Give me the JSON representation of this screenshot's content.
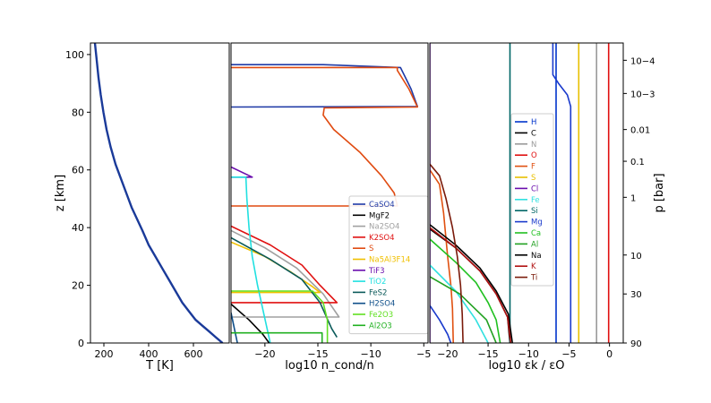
{
  "chart_data": [
    {
      "type": "line",
      "panel": "temperature",
      "xlabel": "T [K]",
      "ylabel": "z [km]",
      "xlim": [
        140,
        760
      ],
      "ylim": [
        0,
        104
      ],
      "xticks": [
        {
          "v": 200,
          "label": "200"
        },
        {
          "v": 400,
          "label": "400"
        },
        {
          "v": 600,
          "label": "600"
        }
      ],
      "yticks": [
        {
          "v": 0,
          "label": "0"
        },
        {
          "v": 20,
          "label": "20"
        },
        {
          "v": 40,
          "label": "40"
        },
        {
          "v": 60,
          "label": "60"
        },
        {
          "v": 80,
          "label": "80"
        },
        {
          "v": 100,
          "label": "100"
        }
      ],
      "series": [
        {
          "color": "#1a3a99",
          "points": [
            [
              160,
              104
            ],
            [
              168,
              98
            ],
            [
              176,
              92
            ],
            [
              186,
              86
            ],
            [
              198,
              80
            ],
            [
              212,
              74
            ],
            [
              230,
              68
            ],
            [
              252,
              62
            ],
            [
              276,
              57
            ],
            [
              300,
              52
            ],
            [
              324,
              47
            ],
            [
              348,
              43
            ],
            [
              372,
              39
            ],
            [
              400,
              34
            ],
            [
              430,
              30
            ],
            [
              460,
              26
            ],
            [
              490,
              22
            ],
            [
              520,
              18
            ],
            [
              550,
              14
            ],
            [
              580,
              11
            ],
            [
              610,
              8
            ],
            [
              640,
              6
            ],
            [
              670,
              4
            ],
            [
              700,
              2
            ],
            [
              730,
              0
            ]
          ]
        }
      ]
    },
    {
      "type": "line",
      "panel": "condensates",
      "xlabel": "log10 n_cond/n",
      "xlim": [
        -23.2,
        -4.6
      ],
      "ylim": [
        0,
        104
      ],
      "xticks": [
        {
          "v": -20,
          "label": "−20"
        },
        {
          "v": -15,
          "label": "−15"
        },
        {
          "v": -10,
          "label": "−10"
        },
        {
          "v": -5,
          "label": "−5"
        }
      ],
      "legend": "center-right",
      "series": [
        {
          "name": "CaSO4",
          "color": "#1f3aa6",
          "points": [
            [
              -23.2,
              81.8
            ],
            [
              -5.6,
              82
            ],
            [
              -6.2,
              88
            ],
            [
              -6.8,
              92.5
            ],
            [
              -7.2,
              95.5
            ],
            [
              -14.5,
              96.5
            ],
            [
              -23.2,
              96.5
            ]
          ]
        },
        {
          "name": "MgF2",
          "color": "#000000",
          "points": [
            [
              -23.2,
              13.5
            ],
            [
              -21.5,
              8
            ],
            [
              -20.2,
              3
            ],
            [
              -19.6,
              0
            ]
          ]
        },
        {
          "name": "Na2SO4",
          "color": "#a0a0a0",
          "points": [
            [
              -23.2,
              39
            ],
            [
              -20,
              33
            ],
            [
              -17,
              26
            ],
            [
              -14.5,
              17
            ],
            [
              -13,
              9
            ],
            [
              -23.2,
              9
            ]
          ]
        },
        {
          "name": "K2SO4",
          "color": "#e01010",
          "points": [
            [
              -23.2,
              40.5
            ],
            [
              -19.5,
              34
            ],
            [
              -16.5,
              27
            ],
            [
              -14.8,
              20
            ],
            [
              -13.2,
              14
            ],
            [
              -23.2,
              14
            ]
          ]
        },
        {
          "name": "S",
          "color": "#e04a10",
          "points": [
            [
              -23.2,
              47.5
            ],
            [
              -7.5,
              47.5
            ],
            [
              -7.8,
              52
            ],
            [
              -9,
              58
            ],
            [
              -11,
              66
            ],
            [
              -13.5,
              74
            ],
            [
              -14.5,
              79
            ],
            [
              -14.4,
              81.5
            ],
            [
              -5.6,
              81.8
            ],
            [
              -6.4,
              88
            ],
            [
              -7.5,
              94.5
            ],
            [
              -7.5,
              95.5
            ],
            [
              -23.2,
              95.5
            ]
          ]
        },
        {
          "name": "Na5Al3F14",
          "color": "#f0c000",
          "points": [
            [
              -23.2,
              35
            ],
            [
              -20,
              30
            ],
            [
              -17.5,
              24.5
            ],
            [
              -15.5,
              19.5
            ],
            [
              -14.8,
              17.5
            ],
            [
              -23.2,
              17.5
            ]
          ]
        },
        {
          "name": "TiF3",
          "color": "#6a0dad",
          "points": [
            [
              -23.2,
              61
            ],
            [
              -21.2,
              57.5
            ],
            [
              -23.2,
              57.5
            ]
          ]
        },
        {
          "name": "TiO2",
          "color": "#20e0e0",
          "points": [
            [
              -23.2,
              57.5
            ],
            [
              -21.8,
              57.5
            ],
            [
              -21.7,
              50
            ],
            [
              -21.5,
              40
            ],
            [
              -21.2,
              30
            ],
            [
              -20.7,
              20
            ],
            [
              -20.1,
              10
            ],
            [
              -19.5,
              0
            ]
          ]
        },
        {
          "name": "FeS2",
          "color": "#0b5a5a",
          "points": [
            [
              -23.2,
              36.5
            ],
            [
              -19.5,
              29
            ],
            [
              -16.5,
              22
            ],
            [
              -14.8,
              14
            ],
            [
              -13.7,
              5
            ],
            [
              -13.2,
              2
            ]
          ]
        },
        {
          "name": "H2SO4",
          "color": "#0f4f8a",
          "points": [
            [
              -23.2,
              10.5
            ],
            [
              -22.6,
              0
            ]
          ]
        },
        {
          "name": "Fe2O3",
          "color": "#60e020",
          "points": [
            [
              -23.2,
              18
            ],
            [
              -15.5,
              18
            ],
            [
              -14.5,
              14
            ],
            [
              -14.1,
              8
            ],
            [
              -14.1,
              0
            ]
          ]
        },
        {
          "name": "Al2O3",
          "color": "#20b020",
          "points": [
            [
              -23.2,
              3.5
            ],
            [
              -14.6,
              3.5
            ],
            [
              -14.6,
              0
            ]
          ]
        }
      ]
    },
    {
      "type": "line",
      "panel": "elements",
      "xlabel": "log10 εk / εO",
      "ylabel": "p [bar]",
      "xlim": [
        -22.2,
        1.7
      ],
      "ylim": [
        0,
        104
      ],
      "xticks": [
        {
          "v": -20,
          "label": "−20"
        },
        {
          "v": -15,
          "label": "−15"
        },
        {
          "v": -10,
          "label": "−10"
        },
        {
          "v": -5,
          "label": "−5"
        },
        {
          "v": 0,
          "label": "0"
        }
      ],
      "yticks_right": [
        {
          "z": 98,
          "label": "10−4"
        },
        {
          "z": 86.5,
          "label": "10−3"
        },
        {
          "z": 74,
          "label": "0.01"
        },
        {
          "z": 63,
          "label": "0.1"
        },
        {
          "z": 50.5,
          "label": "1"
        },
        {
          "z": 30.5,
          "label": "10"
        },
        {
          "z": 17,
          "label": "30"
        },
        {
          "z": 0,
          "label": "90"
        }
      ],
      "legend": "center-left",
      "series": [
        {
          "name": "H",
          "color": "#0033cc",
          "points": [
            [
              -6.6,
              104
            ],
            [
              -6.6,
              0
            ]
          ]
        },
        {
          "name": "C",
          "color": "#000000",
          "points": [
            [
              -22.2,
              39.5
            ],
            [
              -19,
              33
            ],
            [
              -16,
              25
            ],
            [
              -14,
              17
            ],
            [
              -12.6,
              9
            ],
            [
              -12.3,
              0
            ]
          ]
        },
        {
          "name": "N",
          "color": "#9a9a9a",
          "points": [
            [
              -1.6,
              104
            ],
            [
              -1.6,
              0
            ]
          ]
        },
        {
          "name": "O",
          "color": "#e01010",
          "points": [
            [
              -0.1,
              104
            ],
            [
              -0.1,
              0
            ]
          ]
        },
        {
          "name": "F",
          "color": "#e05010",
          "points": [
            [
              -22.2,
              60
            ],
            [
              -21,
              55
            ],
            [
              -20.5,
              45
            ],
            [
              -20,
              30
            ],
            [
              -19.6,
              20
            ],
            [
              -19.4,
              12
            ],
            [
              -19.3,
              0
            ]
          ]
        },
        {
          "name": "S",
          "color": "#e8c000",
          "points": [
            [
              -3.8,
              104
            ],
            [
              -3.8,
              0
            ]
          ]
        },
        {
          "name": "Cl",
          "color": "#6a0dad",
          "points": [
            [
              -22.2,
              104
            ],
            [
              -22.2,
              0
            ]
          ]
        },
        {
          "name": "Fe",
          "color": "#30e0e0",
          "points": [
            [
              -22.2,
              27
            ],
            [
              -19,
              18
            ],
            [
              -16.5,
              8
            ],
            [
              -15,
              0
            ]
          ]
        },
        {
          "name": "Si",
          "color": "#006666",
          "points": [
            [
              -12.3,
              104
            ],
            [
              -12.3,
              0
            ]
          ]
        },
        {
          "name": "Mg",
          "color": "#1a3acc",
          "points": [
            [
              -7,
              104
            ],
            [
              -7,
              93
            ],
            [
              -6.3,
              90
            ],
            [
              -5.2,
              86
            ],
            [
              -4.8,
              82
            ],
            [
              -4.8,
              0
            ]
          ]
        },
        {
          "name": "Ca",
          "color": "#20c020",
          "points": [
            [
              -22.2,
              36
            ],
            [
              -19,
              28
            ],
            [
              -16.5,
              21
            ],
            [
              -15,
              14
            ],
            [
              -14,
              8
            ],
            [
              -13.5,
              0
            ]
          ]
        },
        {
          "name": "Al",
          "color": "#20a020",
          "points": [
            [
              -22.2,
              23
            ],
            [
              -18.5,
              17
            ],
            [
              -15.2,
              8
            ],
            [
              -14,
              0
            ]
          ]
        },
        {
          "name": "Na",
          "color": "#000000",
          "points": [
            [
              -22.2,
              41
            ],
            [
              -19,
              34
            ],
            [
              -16,
              26
            ],
            [
              -14,
              18
            ],
            [
              -12.5,
              10
            ],
            [
              -12,
              0
            ]
          ]
        },
        {
          "name": "K",
          "color": "#b01010",
          "points": [
            [
              -22.2,
              40
            ],
            [
              -19,
              33
            ],
            [
              -16,
              25
            ],
            [
              -14,
              17
            ],
            [
              -12.6,
              9
            ],
            [
              -12.2,
              0
            ]
          ]
        },
        {
          "name": "Ti",
          "color": "#7a1a0a",
          "points": [
            [
              -22.2,
              62
            ],
            [
              -21,
              58
            ],
            [
              -20.2,
              50
            ],
            [
              -19.4,
              40
            ],
            [
              -18.8,
              30
            ],
            [
              -18.4,
              20
            ],
            [
              -18.2,
              10
            ],
            [
              -18.1,
              0
            ]
          ]
        },
        {
          "color": "#1a3acc",
          "points": [
            [
              -22.2,
              13
            ],
            [
              -21,
              8
            ],
            [
              -20,
              3
            ],
            [
              -19.6,
              0
            ]
          ]
        }
      ]
    }
  ]
}
